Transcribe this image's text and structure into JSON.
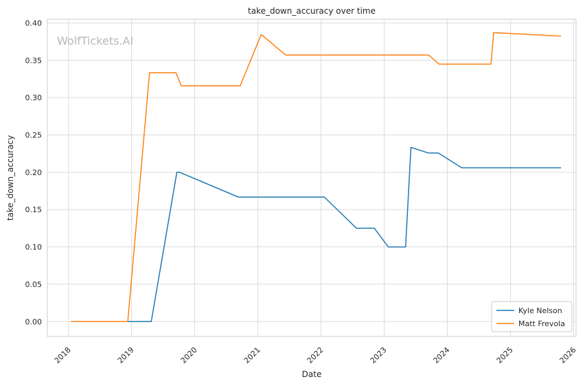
{
  "chart_data": {
    "type": "line",
    "title": "take_down_accuracy over time",
    "xlabel": "Date",
    "ylabel": "take_down_accuracy",
    "watermark": "WolfTickets.AI",
    "xlim": [
      "2017-09-01",
      "2026-01-15"
    ],
    "ylim": [
      -0.02,
      0.405
    ],
    "x_ticks": [
      "2018",
      "2019",
      "2020",
      "2021",
      "2022",
      "2023",
      "2024",
      "2025",
      "2026"
    ],
    "y_ticks": [
      "0.00",
      "0.05",
      "0.10",
      "0.15",
      "0.20",
      "0.25",
      "0.30",
      "0.35",
      "0.40"
    ],
    "grid": true,
    "legend_position": "lower-right",
    "series": [
      {
        "name": "Kyle Nelson",
        "color": "#1f77b4",
        "points": [
          [
            "2018-11-25",
            0.0
          ],
          [
            "2019-04-25",
            0.0
          ],
          [
            "2019-09-20",
            0.2
          ],
          [
            "2019-10-05",
            0.2
          ],
          [
            "2020-09-10",
            0.1667
          ],
          [
            "2022-01-20",
            0.1667
          ],
          [
            "2022-07-25",
            0.125
          ],
          [
            "2022-11-05",
            0.125
          ],
          [
            "2023-01-25",
            0.1
          ],
          [
            "2023-05-05",
            0.1
          ],
          [
            "2023-06-05",
            0.2333
          ],
          [
            "2023-09-15",
            0.2258
          ],
          [
            "2023-11-10",
            0.2258
          ],
          [
            "2024-03-25",
            0.2059
          ],
          [
            "2025-10-20",
            0.2059
          ]
        ]
      },
      {
        "name": "Matt Frevola",
        "color": "#ff7f0e",
        "points": [
          [
            "2018-01-15",
            0.0
          ],
          [
            "2018-12-10",
            0.0
          ],
          [
            "2019-04-15",
            0.3333
          ],
          [
            "2019-09-15",
            0.3333
          ],
          [
            "2019-10-15",
            0.3158
          ],
          [
            "2020-09-20",
            0.3158
          ],
          [
            "2021-01-20",
            0.3846
          ],
          [
            "2021-06-10",
            0.3571
          ],
          [
            "2023-09-15",
            0.3571
          ],
          [
            "2023-11-15",
            0.3448
          ],
          [
            "2024-09-10",
            0.3448
          ],
          [
            "2024-09-25",
            0.3871
          ],
          [
            "2025-10-20",
            0.3824
          ]
        ]
      }
    ]
  }
}
